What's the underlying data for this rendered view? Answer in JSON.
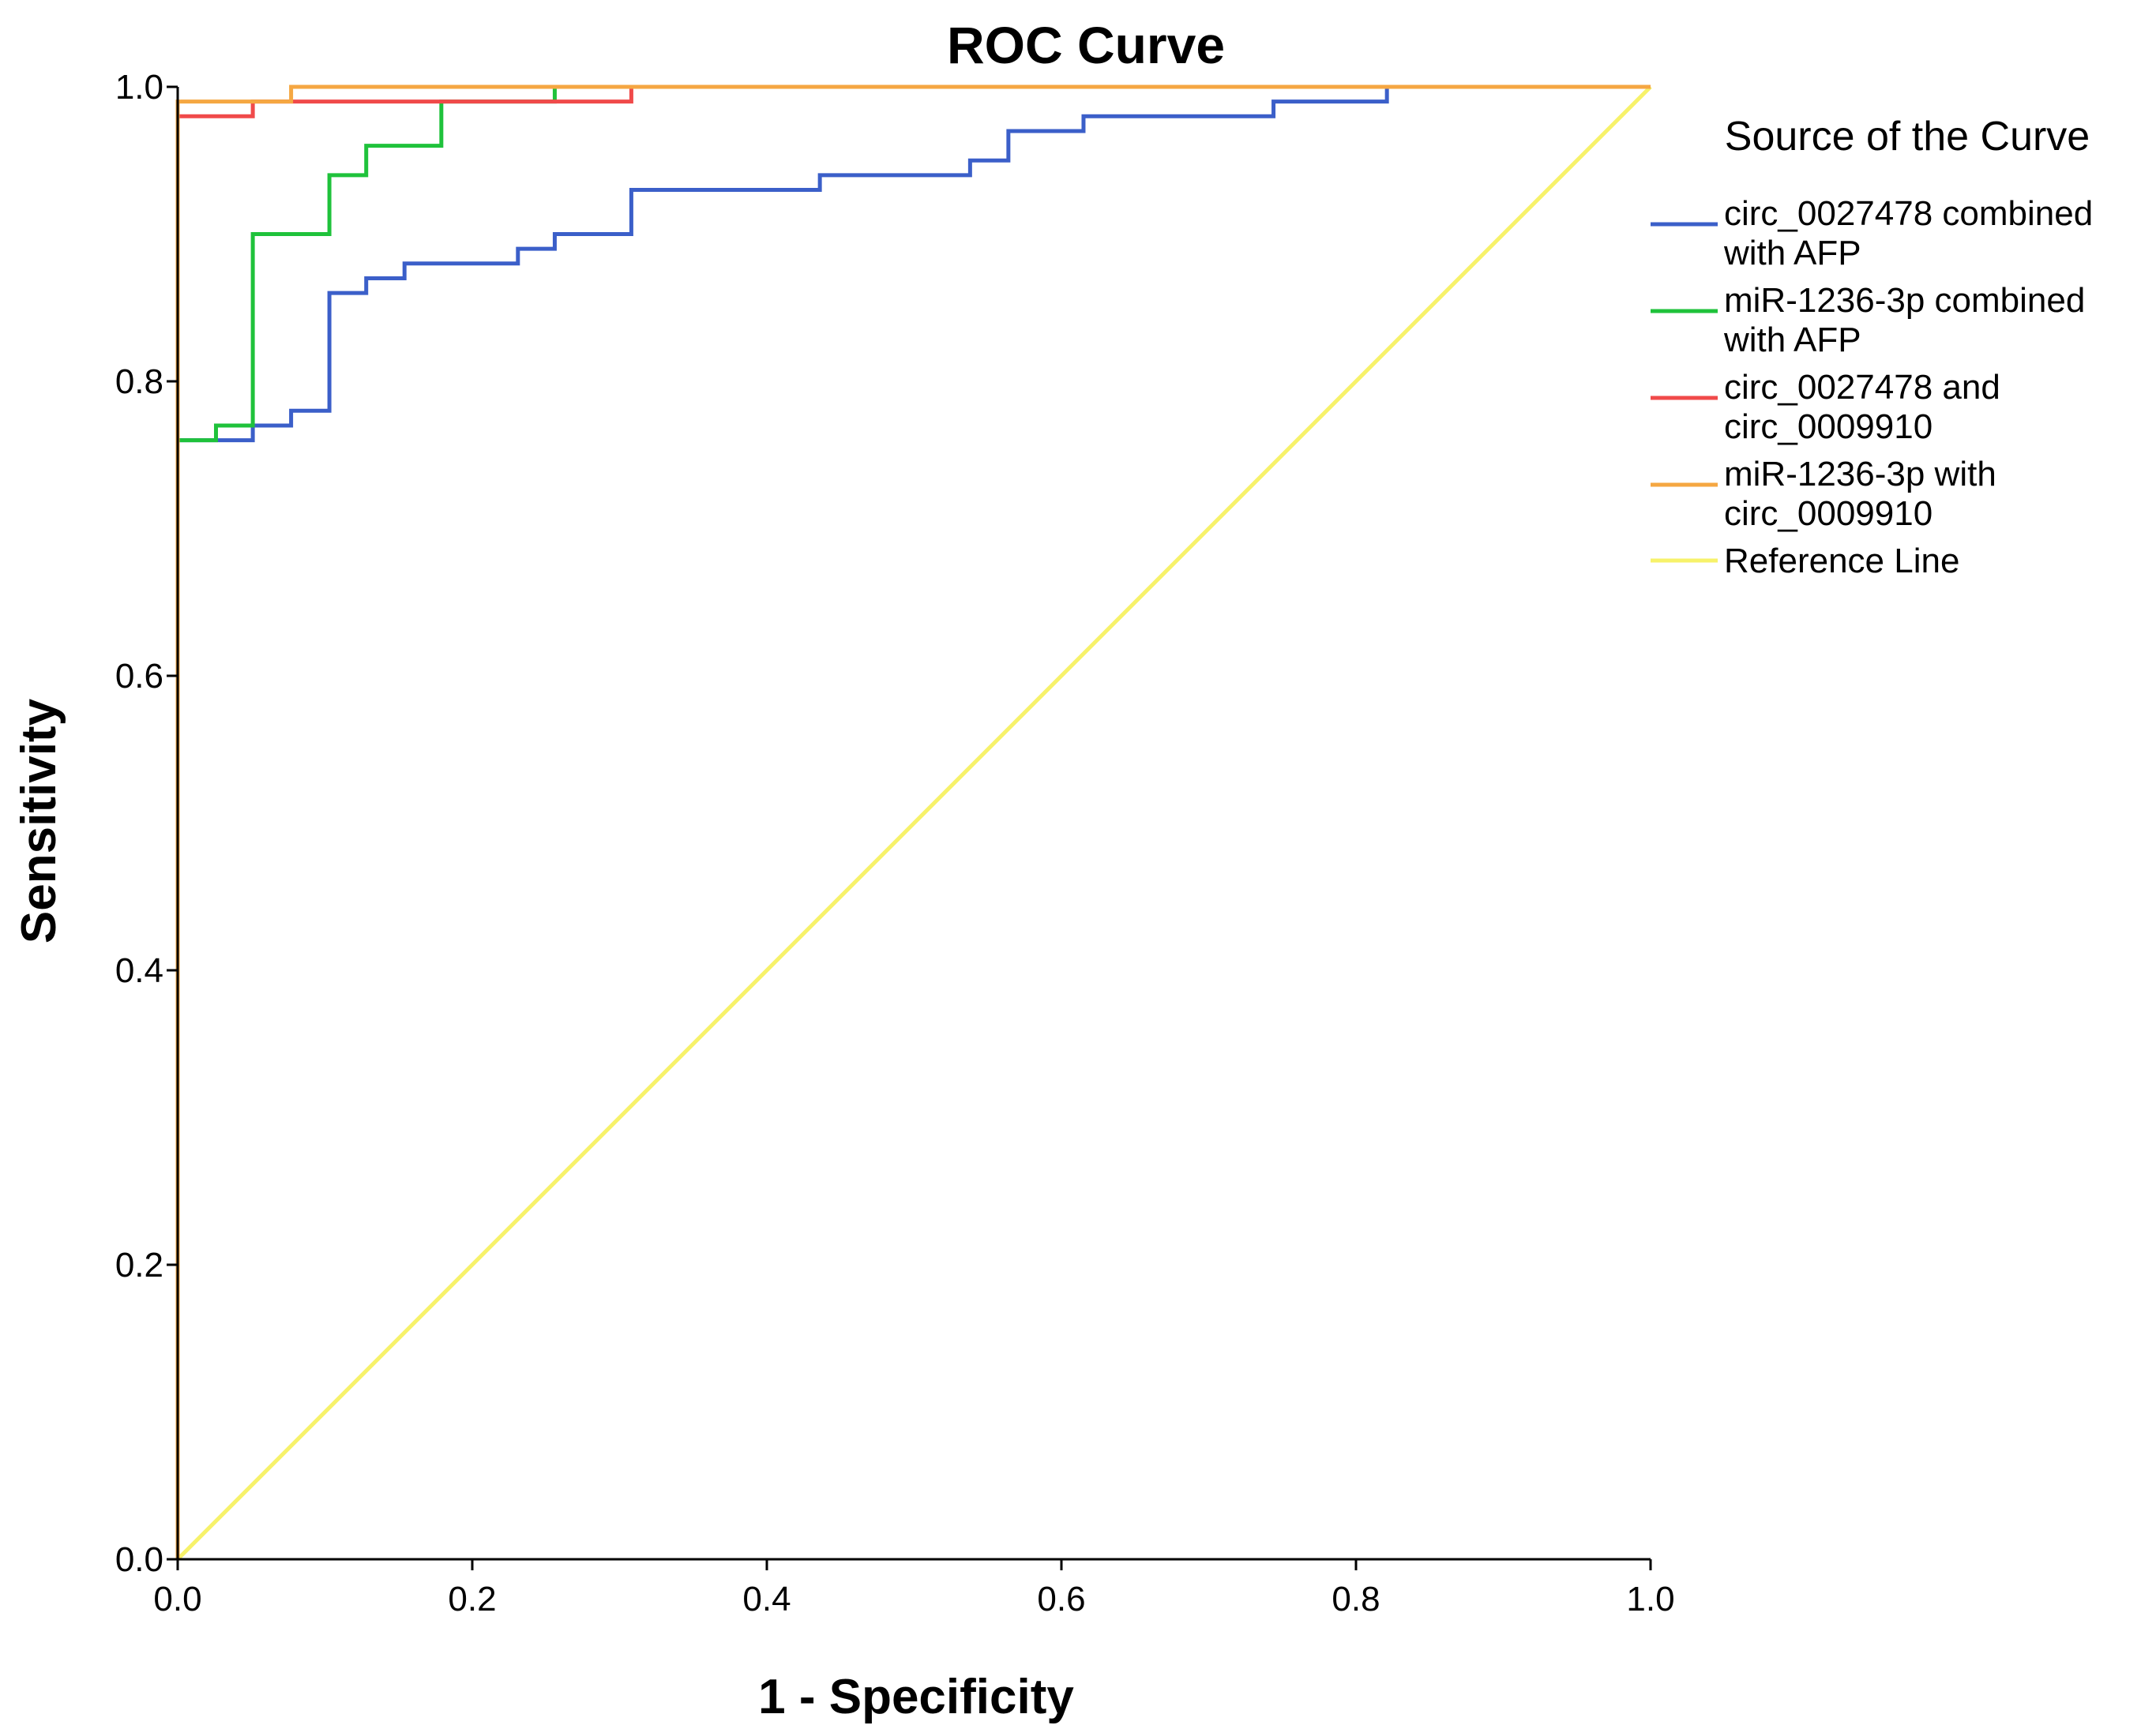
{
  "chart_data": {
    "type": "line",
    "title": "ROC Curve",
    "xlabel": "1 - Specificity",
    "ylabel": "Sensitivity",
    "xlim": [
      0,
      1
    ],
    "ylim": [
      0,
      1
    ],
    "x_ticks": [
      "0.0",
      "0.2",
      "0.4",
      "0.6",
      "0.8",
      "1.0"
    ],
    "y_ticks": [
      "0.0",
      "0.2",
      "0.4",
      "0.6",
      "0.8",
      "1.0"
    ],
    "grid": false,
    "legend": {
      "title": "Source of the Curve",
      "position": "right",
      "entries": [
        {
          "lines": [
            "circ_0027478 combined",
            "with AFP"
          ],
          "color": "#3b5fc9"
        },
        {
          "lines": [
            "miR-1236-3p combined",
            "with AFP"
          ],
          "color": "#1fc23b"
        },
        {
          "lines": [
            "circ_0027478 and",
            "circ_0009910"
          ],
          "color": "#f04a4a"
        },
        {
          "lines": [
            "miR-1236-3p with",
            "circ_0009910"
          ],
          "color": "#f5a742"
        },
        {
          "lines": [
            "Reference Line"
          ],
          "color": "#f7f26a"
        }
      ]
    },
    "series": [
      {
        "name": "Reference Line",
        "color": "#f7f26a",
        "step": false,
        "x": [
          0,
          1
        ],
        "y": [
          0,
          1
        ]
      },
      {
        "name": "circ_0027478 combined with AFP",
        "color": "#3b5fc9",
        "step": true,
        "x": [
          0,
          0.026,
          0.051,
          0.077,
          0.103,
          0.128,
          0.154,
          0.231,
          0.256,
          0.308,
          0.436,
          0.538,
          0.564,
          0.615,
          0.744,
          0.821
        ],
        "y": [
          0.76,
          0.76,
          0.77,
          0.78,
          0.86,
          0.87,
          0.88,
          0.89,
          0.9,
          0.93,
          0.94,
          0.95,
          0.97,
          0.98,
          0.99,
          1.0
        ]
      },
      {
        "name": "miR-1236-3p combined with AFP",
        "color": "#1fc23b",
        "step": true,
        "x": [
          0,
          0.026,
          0.051,
          0.103,
          0.128,
          0.179,
          0.256,
          1.0
        ],
        "y": [
          0.76,
          0.77,
          0.9,
          0.94,
          0.96,
          0.99,
          1.0,
          1.0
        ]
      },
      {
        "name": "circ_0027478 and circ_0009910",
        "color": "#f04a4a",
        "step": true,
        "x": [
          0,
          0.051,
          0.077,
          0.308,
          1.0
        ],
        "y": [
          0.98,
          0.99,
          0.99,
          1.0,
          1.0
        ]
      },
      {
        "name": "miR-1236-3p with circ_0009910",
        "color": "#f5a742",
        "step": true,
        "x": [
          0,
          0,
          0.077,
          1.0
        ],
        "y": [
          0,
          0.99,
          1.0,
          1.0
        ]
      }
    ]
  }
}
